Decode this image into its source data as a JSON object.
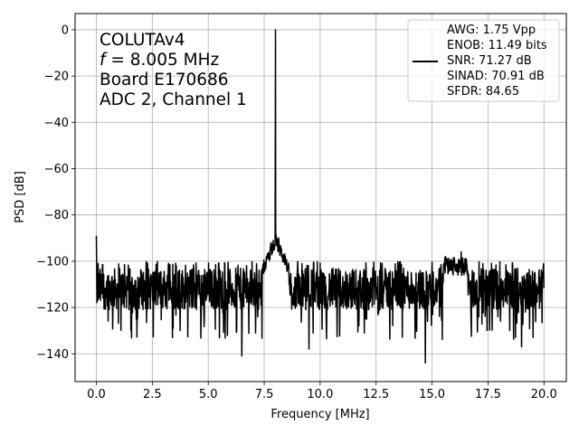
{
  "chart_data": {
    "type": "line",
    "title": "",
    "xlabel": "Frequency [MHz]",
    "ylabel": "PSD [dB]",
    "xlim": [
      -0.95,
      21.0
    ],
    "ylim": [
      -152.0,
      7.0
    ],
    "xticks": [
      0,
      2.5,
      5,
      7.5,
      10,
      12.5,
      15,
      17.5,
      20
    ],
    "xtick_labels": [
      "0.0",
      "2.5",
      "5.0",
      "7.5",
      "10.0",
      "12.5",
      "15.0",
      "17.5",
      "20.0"
    ],
    "yticks": [
      0,
      -20,
      -40,
      -60,
      -80,
      -100,
      -120,
      -140
    ],
    "ytick_labels": [
      "0",
      "−20",
      "−40",
      "−60",
      "−80",
      "−100",
      "−120",
      "−140"
    ],
    "grid": true,
    "annotation_lines": [
      {
        "prefix": "COLUTAv4",
        "symbol": "",
        "suffix": ""
      },
      {
        "prefix": "",
        "symbol": "f",
        "suffix": " = 8.005 MHz"
      },
      {
        "prefix": "Board E170686",
        "symbol": "",
        "suffix": ""
      },
      {
        "prefix": "ADC 2, Channel 1",
        "symbol": "",
        "suffix": ""
      }
    ],
    "legend": {
      "placement": "top-right",
      "lines": [
        "AWG: 1.75 Vpp",
        "ENOB: 11.49 bits",
        "SNR: 71.27 dB",
        "SINAD: 70.91 dB",
        "SFDR: 84.65"
      ]
    },
    "series": [
      {
        "color": "#000000",
        "noise_floor_db": -112,
        "noise_band_db": [
          -122,
          -102
        ],
        "x_range": [
          0,
          20
        ],
        "features": [
          {
            "x": 0.0,
            "y": -89
          },
          {
            "x": 0.08,
            "y": -101
          },
          {
            "x": 6.5,
            "y": -141
          },
          {
            "x": 7.6,
            "y": -98
          },
          {
            "x": 7.8,
            "y": -92
          },
          {
            "x": 8.005,
            "y": 0
          },
          {
            "x": 8.15,
            "y": -90
          },
          {
            "x": 8.4,
            "y": -97
          },
          {
            "x": 9.5,
            "y": -138
          },
          {
            "x": 14.7,
            "y": -144
          },
          {
            "x": 15.6,
            "y": -98
          },
          {
            "x": 16.0,
            "y": -99
          },
          {
            "x": 16.3,
            "y": -96
          },
          {
            "x": 16.5,
            "y": -100
          },
          {
            "x": 19.0,
            "y": -137
          }
        ]
      }
    ]
  }
}
